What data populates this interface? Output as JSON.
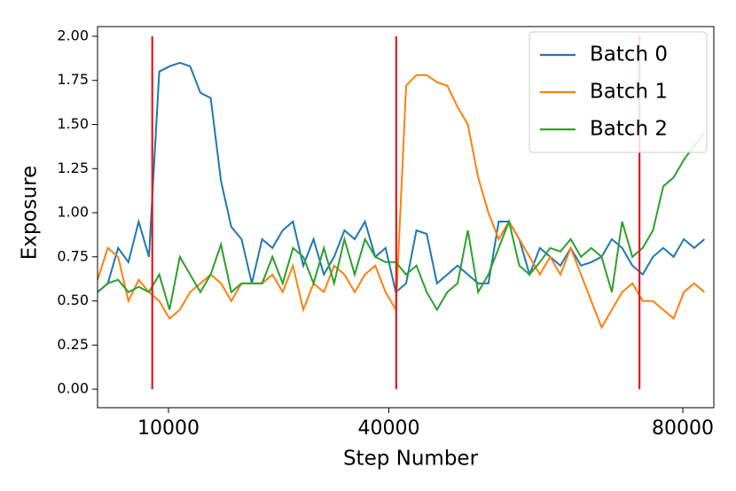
{
  "chart_data": {
    "type": "line",
    "xlabel": "Step Number",
    "ylabel": "Exposure",
    "x": [
      350,
      1750,
      3150,
      4550,
      5950,
      7350,
      8750,
      10150,
      11550,
      12950,
      14350,
      15750,
      17150,
      18550,
      19950,
      21350,
      22750,
      24150,
      25550,
      26950,
      28350,
      29750,
      31150,
      32550,
      33950,
      35350,
      36750,
      38150,
      39550,
      40950,
      42350,
      43750,
      45150,
      46550,
      47950,
      49350,
      50750,
      52150,
      53550,
      54950,
      56350,
      57750,
      59150,
      60550,
      61950,
      63350,
      64750,
      66150,
      67550,
      68950,
      70350,
      71750,
      73150,
      74550,
      75950,
      77350,
      78750,
      80150,
      81550,
      82950
    ],
    "series": [
      {
        "name": "Batch 0",
        "color": "#1f77b4",
        "values": [
          0.55,
          0.6,
          0.8,
          0.72,
          0.95,
          0.75,
          1.8,
          1.83,
          1.85,
          1.83,
          1.68,
          1.65,
          1.18,
          0.92,
          0.85,
          0.6,
          0.85,
          0.8,
          0.9,
          0.95,
          0.7,
          0.85,
          0.65,
          0.75,
          0.9,
          0.85,
          0.95,
          0.75,
          0.8,
          0.55,
          0.6,
          0.9,
          0.88,
          0.6,
          0.65,
          0.7,
          0.65,
          0.6,
          0.6,
          0.95,
          0.95,
          0.85,
          0.65,
          0.8,
          0.75,
          0.7,
          0.8,
          0.7,
          0.72,
          0.75,
          0.85,
          0.8,
          0.7,
          0.65,
          0.75,
          0.8,
          0.75,
          0.85,
          0.8,
          0.85
        ]
      },
      {
        "name": "Batch 1",
        "color": "#ff7f0e",
        "values": [
          0.62,
          0.8,
          0.75,
          0.5,
          0.62,
          0.55,
          0.5,
          0.4,
          0.45,
          0.55,
          0.6,
          0.65,
          0.6,
          0.5,
          0.6,
          0.6,
          0.6,
          0.65,
          0.55,
          0.7,
          0.45,
          0.6,
          0.55,
          0.7,
          0.65,
          0.55,
          0.65,
          0.7,
          0.55,
          0.45,
          1.72,
          1.78,
          1.78,
          1.74,
          1.72,
          1.6,
          1.5,
          1.2,
          1.0,
          0.85,
          0.95,
          0.85,
          0.75,
          0.65,
          0.75,
          0.65,
          0.8,
          0.65,
          0.5,
          0.35,
          0.45,
          0.55,
          0.6,
          0.5,
          0.5,
          0.45,
          0.4,
          0.55,
          0.6,
          0.55
        ]
      },
      {
        "name": "Batch 2",
        "color": "#2ca02c",
        "values": [
          0.55,
          0.6,
          0.62,
          0.55,
          0.58,
          0.55,
          0.65,
          0.45,
          0.75,
          0.65,
          0.55,
          0.65,
          0.82,
          0.55,
          0.6,
          0.6,
          0.6,
          0.75,
          0.6,
          0.8,
          0.75,
          0.6,
          0.8,
          0.6,
          0.85,
          0.65,
          0.85,
          0.75,
          0.72,
          0.72,
          0.65,
          0.7,
          0.55,
          0.45,
          0.55,
          0.6,
          0.9,
          0.55,
          0.65,
          0.8,
          0.95,
          0.7,
          0.65,
          0.72,
          0.8,
          0.78,
          0.85,
          0.75,
          0.8,
          0.75,
          0.55,
          0.95,
          0.75,
          0.8,
          0.9,
          1.15,
          1.2,
          1.3,
          1.38,
          1.45
        ]
      }
    ],
    "vlines": {
      "x": [
        7800,
        41000,
        74100
      ],
      "ymin": 0,
      "ymax": 2,
      "color": "#e31a1c"
    },
    "xlim": [
      350,
      84224
    ],
    "xticks": [
      10000,
      40000,
      80000
    ],
    "ylim": [
      -0.105,
      2.055
    ],
    "yticks": [
      {
        "value": 0,
        "label": "0.00"
      },
      {
        "value": 0.25,
        "label": "0.25"
      },
      {
        "value": 0.5,
        "label": "0.50"
      },
      {
        "value": 0.75,
        "label": "0.75"
      },
      {
        "value": 1,
        "label": "1.00"
      },
      {
        "value": 1.25,
        "label": "1.25"
      },
      {
        "value": 1.5,
        "label": "1.50"
      },
      {
        "value": 1.75,
        "label": "1.75"
      },
      {
        "value": 2,
        "label": "2.00"
      }
    ],
    "legend": "upper right"
  }
}
